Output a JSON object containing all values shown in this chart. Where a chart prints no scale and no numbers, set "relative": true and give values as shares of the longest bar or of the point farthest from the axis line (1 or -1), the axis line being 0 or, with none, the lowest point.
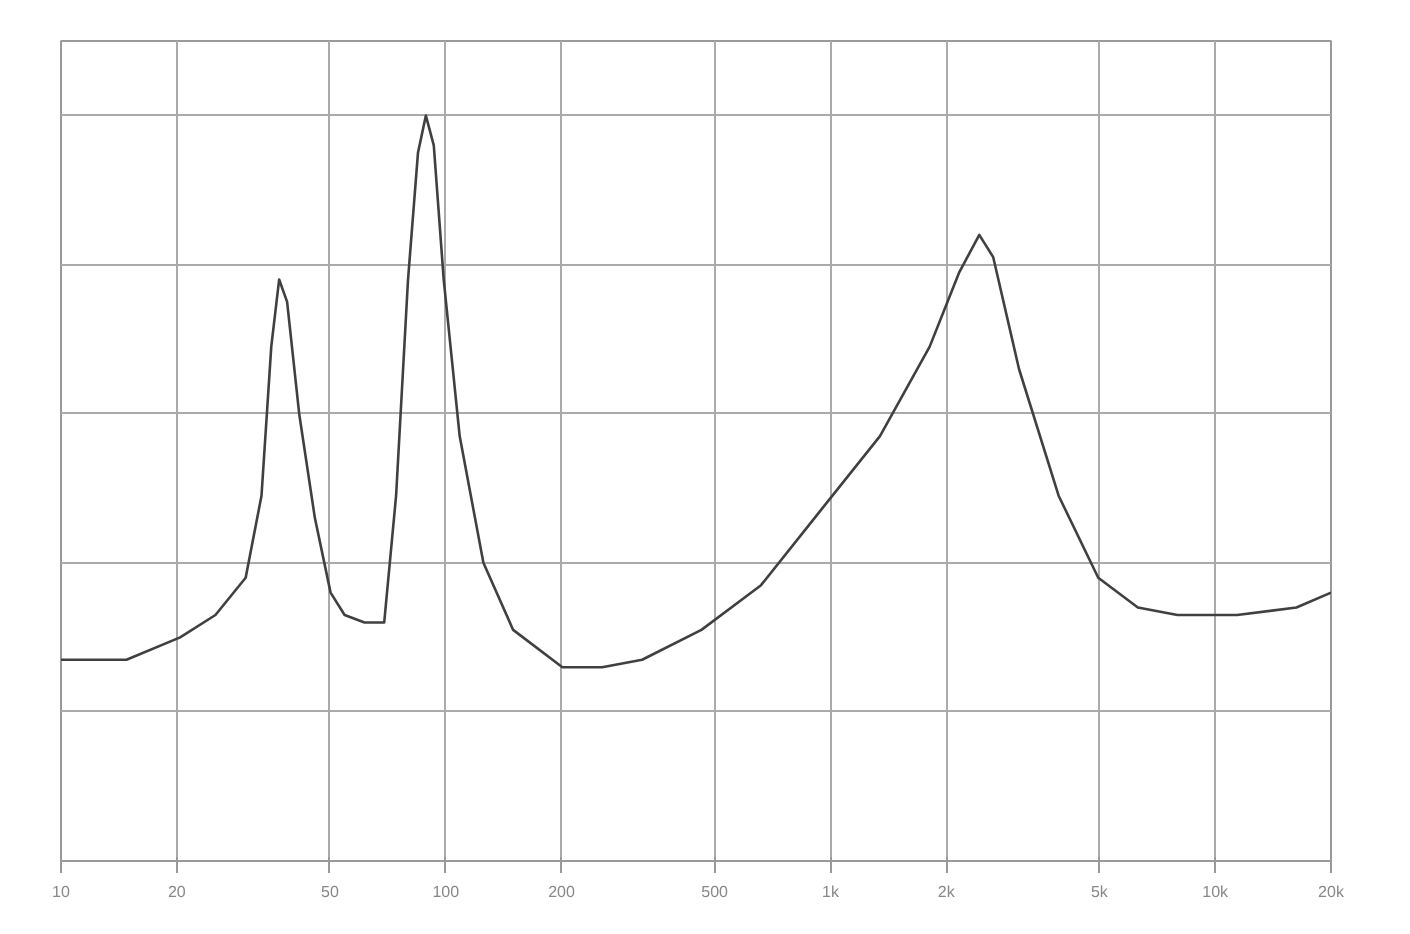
{
  "chart_data": {
    "type": "line",
    "relative": true,
    "log": "x",
    "grid": true,
    "xlim": [
      10,
      20000
    ],
    "xticks": [
      {
        "value": 10,
        "label": "10"
      },
      {
        "value": 20,
        "label": "20"
      },
      {
        "value": 50,
        "label": "50"
      },
      {
        "value": 100,
        "label": "100"
      },
      {
        "value": 200,
        "label": "200"
      },
      {
        "value": 500,
        "label": "500"
      },
      {
        "value": 1000,
        "label": "1k"
      },
      {
        "value": 2000,
        "label": "2k"
      },
      {
        "value": 5000,
        "label": "5k"
      },
      {
        "value": 10000,
        "label": "10k"
      },
      {
        "value": 20000,
        "label": "20k"
      }
    ],
    "x": [
      10,
      14.8,
      20.4,
      25.2,
      30.2,
      33.2,
      35.2,
      36.9,
      38.7,
      41.6,
      45.7,
      50.2,
      54.6,
      61.5,
      69.2,
      74.3,
      79.8,
      84.7,
      88.8,
      93.1,
      98.8,
      108.7,
      125.3,
      149.7,
      201,
      255,
      324,
      462,
      660,
      942,
      1345,
      1811,
      2163,
      2437,
      2649,
      3091,
      3918,
      4966,
      6295,
      7980,
      11400,
      16260,
      20000
    ],
    "series": [
      {
        "color": "#404040",
        "values": [
          0.27,
          0.27,
          0.3,
          0.33,
          0.38,
          0.49,
          0.69,
          0.78,
          0.75,
          0.6,
          0.46,
          0.36,
          0.33,
          0.32,
          0.32,
          0.49,
          0.78,
          0.95,
          1,
          0.96,
          0.78,
          0.57,
          0.4,
          0.31,
          0.26,
          0.26,
          0.27,
          0.31,
          0.37,
          0.47,
          0.57,
          0.69,
          0.79,
          0.84,
          0.81,
          0.66,
          0.49,
          0.38,
          0.34,
          0.33,
          0.33,
          0.34,
          0.36
        ]
      }
    ]
  }
}
